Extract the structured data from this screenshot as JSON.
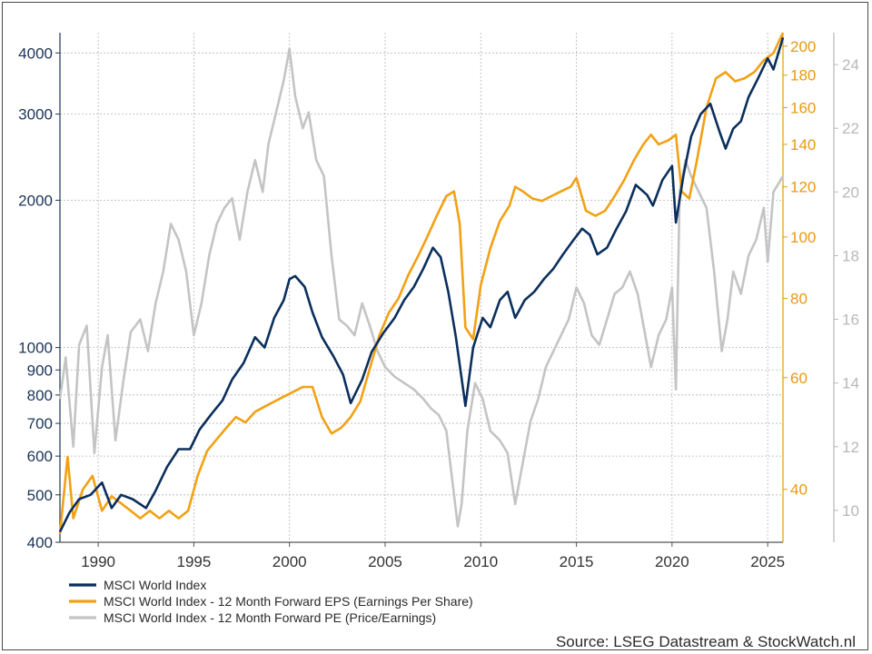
{
  "chart_data": {
    "type": "line",
    "title": "",
    "source": "Source: LSEG Datastream & StockWatch.nl",
    "colors": {
      "index": "#0b2f5c",
      "eps": "#f2a114",
      "pe": "#c4c4c4",
      "left_axis": "#1c3557",
      "eps_axis": "#e69a13",
      "pe_axis": "#b8b8b8"
    },
    "x_axis": {
      "range": [
        1988.0,
        2025.8
      ],
      "ticks": [
        "1990",
        "1995",
        "2000",
        "2005",
        "2010",
        "2015",
        "2020",
        "2025"
      ]
    },
    "left_axis": {
      "scale": "log",
      "range": [
        400,
        4400
      ],
      "ticks": [
        "400",
        "500",
        "600",
        "700",
        "800",
        "900",
        "1000",
        "2000",
        "3000",
        "4000"
      ]
    },
    "eps_axis": {
      "scale": "log",
      "range": [
        33,
        210
      ],
      "ticks": [
        "40",
        "60",
        "80",
        "100",
        "120",
        "140",
        "160",
        "180",
        "200"
      ]
    },
    "pe_axis": {
      "scale": "linear",
      "range": [
        9,
        25
      ],
      "ticks": [
        "10",
        "12",
        "14",
        "16",
        "18",
        "20",
        "22",
        "24"
      ]
    },
    "grid": true,
    "legend_position": "bottom-left",
    "series": [
      {
        "name": "MSCI World Index",
        "axis": "left",
        "x": [
          1988.0,
          1988.5,
          1989.0,
          1989.6,
          1990.2,
          1990.7,
          1991.2,
          1991.8,
          1992.5,
          1993.0,
          1993.6,
          1994.2,
          1994.8,
          1995.3,
          1995.9,
          1996.5,
          1997.0,
          1997.6,
          1998.2,
          1998.7,
          1999.2,
          1999.7,
          2000.0,
          2000.3,
          2000.8,
          2001.2,
          2001.7,
          2002.3,
          2002.8,
          2003.2,
          2003.8,
          2004.3,
          2004.9,
          2005.5,
          2006.0,
          2006.5,
          2007.0,
          2007.5,
          2007.9,
          2008.3,
          2008.7,
          2009.2,
          2009.6,
          2010.1,
          2010.5,
          2011.0,
          2011.4,
          2011.8,
          2012.3,
          2012.8,
          2013.3,
          2013.8,
          2014.3,
          2014.8,
          2015.3,
          2015.7,
          2016.1,
          2016.6,
          2017.1,
          2017.6,
          2018.1,
          2018.7,
          2019.0,
          2019.5,
          2020.0,
          2020.2,
          2020.6,
          2021.0,
          2021.5,
          2022.0,
          2022.5,
          2022.8,
          2023.2,
          2023.6,
          2024.0,
          2024.5,
          2025.0,
          2025.3,
          2025.8
        ],
        "values": [
          420,
          460,
          490,
          500,
          530,
          470,
          500,
          490,
          470,
          510,
          570,
          620,
          620,
          680,
          730,
          780,
          860,
          930,
          1050,
          1000,
          1150,
          1250,
          1380,
          1400,
          1330,
          1180,
          1050,
          960,
          880,
          770,
          860,
          980,
          1070,
          1150,
          1250,
          1330,
          1450,
          1600,
          1530,
          1300,
          1050,
          760,
          1000,
          1150,
          1100,
          1250,
          1300,
          1150,
          1250,
          1300,
          1380,
          1450,
          1550,
          1650,
          1750,
          1700,
          1550,
          1600,
          1750,
          1900,
          2150,
          2050,
          1950,
          2200,
          2350,
          1800,
          2250,
          2700,
          3000,
          3150,
          2750,
          2550,
          2800,
          2900,
          3250,
          3550,
          3900,
          3700,
          4300
        ]
      },
      {
        "name": "MSCI World Index - 12 Month Forward EPS (Earnings Per Share)",
        "axis": "eps",
        "x": [
          1988.0,
          1988.4,
          1988.7,
          1989.2,
          1989.7,
          1990.2,
          1990.7,
          1991.2,
          1991.7,
          1992.2,
          1992.7,
          1993.2,
          1993.7,
          1994.2,
          1994.7,
          1995.2,
          1995.7,
          1996.2,
          1996.7,
          1997.2,
          1997.7,
          1998.2,
          1998.7,
          1999.2,
          1999.7,
          2000.2,
          2000.7,
          2001.2,
          2001.7,
          2002.2,
          2002.7,
          2003.2,
          2003.7,
          2004.2,
          2004.7,
          2005.2,
          2005.7,
          2006.2,
          2006.7,
          2007.2,
          2007.7,
          2008.2,
          2008.6,
          2008.9,
          2009.2,
          2009.6,
          2010.0,
          2010.5,
          2011.0,
          2011.5,
          2011.8,
          2012.2,
          2012.7,
          2013.2,
          2013.7,
          2014.2,
          2014.7,
          2015.0,
          2015.5,
          2016.0,
          2016.5,
          2017.0,
          2017.5,
          2018.0,
          2018.5,
          2018.9,
          2019.3,
          2019.8,
          2020.2,
          2020.5,
          2020.9,
          2021.3,
          2021.8,
          2022.3,
          2022.8,
          2023.3,
          2023.8,
          2024.3,
          2024.8,
          2025.3,
          2025.8
        ],
        "values": [
          34,
          45,
          36,
          40,
          42,
          37,
          39,
          38,
          37,
          36,
          37,
          36,
          37,
          36,
          37,
          42,
          46,
          48,
          50,
          52,
          51,
          53,
          54,
          55,
          56,
          57,
          58,
          58,
          52,
          49,
          50,
          52,
          55,
          62,
          70,
          76,
          80,
          87,
          93,
          100,
          108,
          116,
          118,
          105,
          72,
          69,
          84,
          96,
          106,
          112,
          120,
          118,
          115,
          114,
          116,
          118,
          120,
          124,
          110,
          108,
          110,
          116,
          123,
          132,
          140,
          145,
          140,
          142,
          145,
          118,
          115,
          132,
          160,
          178,
          182,
          176,
          178,
          182,
          190,
          195,
          210
        ]
      },
      {
        "name": "MSCI World Index - 12 Month Forward PE (Price/Earnings)",
        "axis": "pe",
        "x": [
          1988.0,
          1988.3,
          1988.7,
          1989.0,
          1989.4,
          1989.8,
          1990.2,
          1990.5,
          1990.9,
          1991.3,
          1991.7,
          1992.2,
          1992.6,
          1993.0,
          1993.4,
          1993.8,
          1994.2,
          1994.6,
          1995.0,
          1995.4,
          1995.8,
          1996.2,
          1996.6,
          1997.0,
          1997.4,
          1997.8,
          1998.2,
          1998.6,
          1998.9,
          1999.3,
          1999.7,
          2000.0,
          2000.3,
          2000.7,
          2001.0,
          2001.4,
          2001.8,
          2002.2,
          2002.6,
          2003.0,
          2003.4,
          2003.8,
          2004.2,
          2004.6,
          2005.0,
          2005.5,
          2006.0,
          2006.5,
          2007.0,
          2007.4,
          2007.8,
          2008.2,
          2008.5,
          2008.8,
          2009.0,
          2009.3,
          2009.7,
          2010.1,
          2010.5,
          2011.0,
          2011.4,
          2011.8,
          2012.2,
          2012.6,
          2013.0,
          2013.4,
          2013.8,
          2014.2,
          2014.6,
          2015.0,
          2015.4,
          2015.8,
          2016.2,
          2016.6,
          2017.0,
          2017.4,
          2017.8,
          2018.2,
          2018.6,
          2018.9,
          2019.3,
          2019.7,
          2020.0,
          2020.2,
          2020.4,
          2020.7,
          2021.0,
          2021.4,
          2021.8,
          2022.2,
          2022.6,
          2022.9,
          2023.2,
          2023.6,
          2024.0,
          2024.4,
          2024.8,
          2025.0,
          2025.3,
          2025.8
        ],
        "values": [
          13.5,
          14.8,
          12.0,
          15.2,
          15.8,
          11.8,
          14.5,
          15.5,
          12.2,
          14.0,
          15.6,
          16.0,
          15.0,
          16.5,
          17.5,
          19.0,
          18.5,
          17.5,
          15.5,
          16.5,
          18.0,
          19.0,
          19.5,
          19.8,
          18.5,
          20.0,
          21.0,
          20.0,
          21.5,
          22.5,
          23.5,
          24.5,
          23.0,
          22.0,
          22.5,
          21.0,
          20.5,
          18.0,
          16.0,
          15.8,
          15.5,
          16.5,
          15.8,
          15.0,
          14.5,
          14.2,
          14.0,
          13.8,
          13.5,
          13.2,
          13.0,
          12.5,
          11.0,
          9.5,
          10.2,
          12.5,
          14.0,
          13.5,
          12.5,
          12.2,
          11.8,
          10.2,
          11.5,
          12.8,
          13.5,
          14.5,
          15.0,
          15.5,
          16.0,
          17.0,
          16.5,
          15.5,
          15.2,
          16.0,
          16.8,
          17.0,
          17.5,
          16.8,
          15.5,
          14.5,
          15.5,
          16.0,
          17.0,
          13.8,
          20.0,
          21.0,
          20.5,
          20.0,
          19.5,
          17.5,
          15.0,
          16.0,
          17.5,
          16.8,
          18.0,
          18.5,
          19.5,
          17.8,
          20.0,
          20.5
        ]
      }
    ]
  }
}
